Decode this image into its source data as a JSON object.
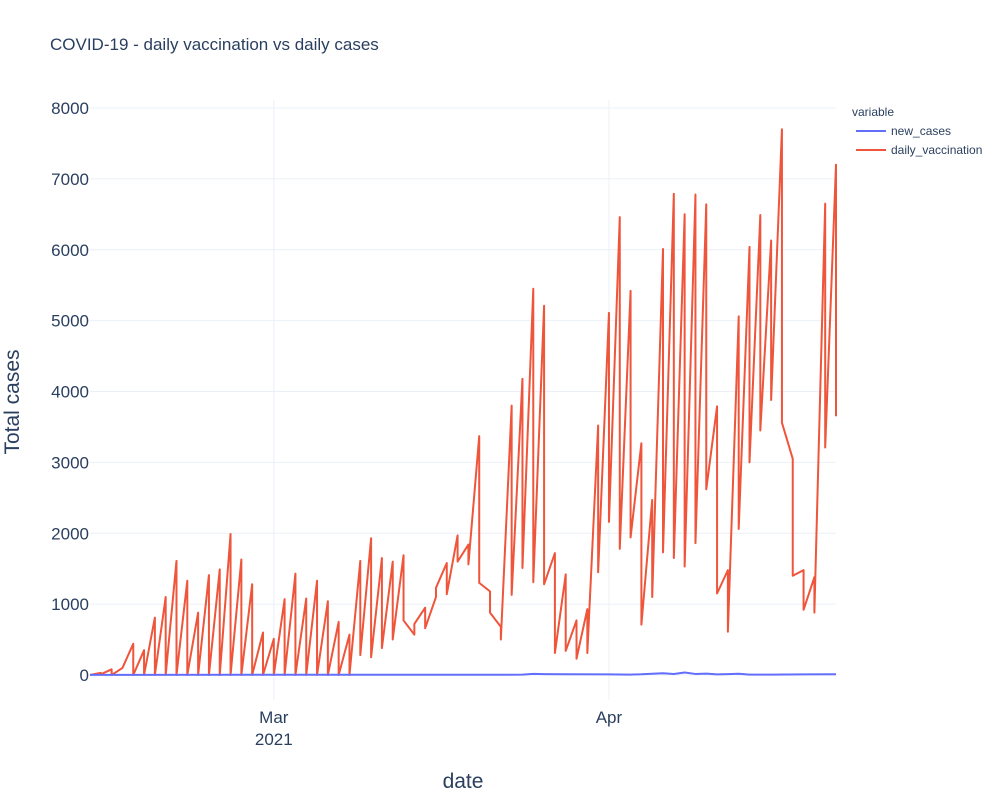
{
  "chart_data": {
    "type": "line",
    "title": "COVID-19 - daily vaccination vs daily cases",
    "xlabel": "date",
    "ylabel": "Total cases",
    "ylim": [
      -260,
      8000
    ],
    "xlim": [
      "2021-02-12",
      "2021-04-22"
    ],
    "grid": true,
    "legend": {
      "title": "variable",
      "placement": "top-right"
    },
    "x_ticks": [
      {
        "date": "2021-03-01",
        "label": "Mar",
        "sublabel": "2021"
      },
      {
        "date": "2021-04-01",
        "label": "Apr",
        "sublabel": ""
      }
    ],
    "y_ticks": [
      0,
      1000,
      2000,
      3000,
      4000,
      5000,
      6000,
      7000,
      8000
    ],
    "series": [
      {
        "name": "new_cases",
        "color": "#636efa",
        "points": [
          [
            "2021-02-12",
            2
          ],
          [
            "2021-03-01",
            3
          ],
          [
            "2021-03-20",
            3
          ],
          [
            "2021-03-24",
            5
          ],
          [
            "2021-03-25",
            16
          ],
          [
            "2021-03-26",
            12
          ],
          [
            "2021-03-28",
            10
          ],
          [
            "2021-04-01",
            8
          ],
          [
            "2021-04-03",
            6
          ],
          [
            "2021-04-04",
            10
          ],
          [
            "2021-04-05",
            18
          ],
          [
            "2021-04-06",
            25
          ],
          [
            "2021-04-07",
            14
          ],
          [
            "2021-04-08",
            35
          ],
          [
            "2021-04-09",
            15
          ],
          [
            "2021-04-10",
            20
          ],
          [
            "2021-04-11",
            8
          ],
          [
            "2021-04-12",
            12
          ],
          [
            "2021-04-13",
            18
          ],
          [
            "2021-04-14",
            6
          ],
          [
            "2021-04-16",
            5
          ],
          [
            "2021-04-19",
            8
          ],
          [
            "2021-04-22",
            10
          ]
        ]
      },
      {
        "name": "daily_vaccination",
        "color": "#ef553b",
        "points": [
          [
            "2021-02-12",
            0
          ],
          [
            "2021-02-13",
            30
          ],
          [
            "2021-02-13",
            10
          ],
          [
            "2021-02-14",
            80
          ],
          [
            "2021-02-14",
            0
          ],
          [
            "2021-02-15",
            100
          ],
          [
            "2021-02-16",
            440
          ],
          [
            "2021-02-16",
            0
          ],
          [
            "2021-02-17",
            350
          ],
          [
            "2021-02-17",
            0
          ],
          [
            "2021-02-18",
            810
          ],
          [
            "2021-02-18",
            0
          ],
          [
            "2021-02-19",
            1100
          ],
          [
            "2021-02-19",
            0
          ],
          [
            "2021-02-20",
            1610
          ],
          [
            "2021-02-20",
            0
          ],
          [
            "2021-02-21",
            1330
          ],
          [
            "2021-02-21",
            0
          ],
          [
            "2021-02-22",
            880
          ],
          [
            "2021-02-22",
            0
          ],
          [
            "2021-02-23",
            1410
          ],
          [
            "2021-02-23",
            0
          ],
          [
            "2021-02-24",
            1490
          ],
          [
            "2021-02-24",
            0
          ],
          [
            "2021-02-25",
            1990
          ],
          [
            "2021-02-25",
            0
          ],
          [
            "2021-02-26",
            1630
          ],
          [
            "2021-02-26",
            0
          ],
          [
            "2021-02-27",
            1280
          ],
          [
            "2021-02-27",
            0
          ],
          [
            "2021-02-28",
            600
          ],
          [
            "2021-02-28",
            0
          ],
          [
            "2021-03-01",
            510
          ],
          [
            "2021-03-01",
            0
          ],
          [
            "2021-03-02",
            1070
          ],
          [
            "2021-03-02",
            0
          ],
          [
            "2021-03-03",
            1430
          ],
          [
            "2021-03-03",
            0
          ],
          [
            "2021-03-04",
            1080
          ],
          [
            "2021-03-04",
            0
          ],
          [
            "2021-03-05",
            1330
          ],
          [
            "2021-03-05",
            0
          ],
          [
            "2021-03-06",
            1040
          ],
          [
            "2021-03-06",
            0
          ],
          [
            "2021-03-07",
            750
          ],
          [
            "2021-03-07",
            0
          ],
          [
            "2021-03-08",
            570
          ],
          [
            "2021-03-08",
            0
          ],
          [
            "2021-03-09",
            1610
          ],
          [
            "2021-03-09",
            280
          ],
          [
            "2021-03-10",
            1930
          ],
          [
            "2021-03-10",
            250
          ],
          [
            "2021-03-11",
            1650
          ],
          [
            "2021-03-11",
            380
          ],
          [
            "2021-03-12",
            1600
          ],
          [
            "2021-03-12",
            500
          ],
          [
            "2021-03-13",
            1690
          ],
          [
            "2021-03-13",
            770
          ],
          [
            "2021-03-14",
            570
          ],
          [
            "2021-03-14",
            720
          ],
          [
            "2021-03-15",
            950
          ],
          [
            "2021-03-15",
            660
          ],
          [
            "2021-03-16",
            1100
          ],
          [
            "2021-03-16",
            1230
          ],
          [
            "2021-03-17",
            1580
          ],
          [
            "2021-03-17",
            1140
          ],
          [
            "2021-03-18",
            1970
          ],
          [
            "2021-03-18",
            1600
          ],
          [
            "2021-03-19",
            1840
          ],
          [
            "2021-03-19",
            1560
          ],
          [
            "2021-03-20",
            3370
          ],
          [
            "2021-03-20",
            1300
          ],
          [
            "2021-03-21",
            1180
          ],
          [
            "2021-03-21",
            880
          ],
          [
            "2021-03-22",
            680
          ],
          [
            "2021-03-22",
            500
          ],
          [
            "2021-03-23",
            3800
          ],
          [
            "2021-03-23",
            1130
          ],
          [
            "2021-03-24",
            4180
          ],
          [
            "2021-03-24",
            1510
          ],
          [
            "2021-03-25",
            5450
          ],
          [
            "2021-03-25",
            1310
          ],
          [
            "2021-03-26",
            5210
          ],
          [
            "2021-03-26",
            1280
          ],
          [
            "2021-03-27",
            1720
          ],
          [
            "2021-03-27",
            310
          ],
          [
            "2021-03-28",
            1420
          ],
          [
            "2021-03-28",
            340
          ],
          [
            "2021-03-29",
            770
          ],
          [
            "2021-03-29",
            230
          ],
          [
            "2021-03-30",
            930
          ],
          [
            "2021-03-30",
            310
          ],
          [
            "2021-03-31",
            3520
          ],
          [
            "2021-03-31",
            1450
          ],
          [
            "2021-04-01",
            5110
          ],
          [
            "2021-04-01",
            2160
          ],
          [
            "2021-04-02",
            6460
          ],
          [
            "2021-04-02",
            1780
          ],
          [
            "2021-04-03",
            5420
          ],
          [
            "2021-04-03",
            1940
          ],
          [
            "2021-04-04",
            3270
          ],
          [
            "2021-04-04",
            710
          ],
          [
            "2021-04-05",
            2470
          ],
          [
            "2021-04-05",
            1100
          ],
          [
            "2021-04-06",
            6010
          ],
          [
            "2021-04-06",
            1730
          ],
          [
            "2021-04-07",
            6790
          ],
          [
            "2021-04-07",
            1650
          ],
          [
            "2021-04-08",
            6500
          ],
          [
            "2021-04-08",
            1530
          ],
          [
            "2021-04-09",
            6780
          ],
          [
            "2021-04-09",
            1860
          ],
          [
            "2021-04-10",
            6640
          ],
          [
            "2021-04-10",
            2620
          ],
          [
            "2021-04-11",
            3790
          ],
          [
            "2021-04-11",
            1150
          ],
          [
            "2021-04-12",
            1480
          ],
          [
            "2021-04-12",
            610
          ],
          [
            "2021-04-13",
            5060
          ],
          [
            "2021-04-13",
            2060
          ],
          [
            "2021-04-14",
            6040
          ],
          [
            "2021-04-14",
            3000
          ],
          [
            "2021-04-15",
            6490
          ],
          [
            "2021-04-15",
            3450
          ],
          [
            "2021-04-16",
            6130
          ],
          [
            "2021-04-16",
            3880
          ],
          [
            "2021-04-17",
            7700
          ],
          [
            "2021-04-17",
            3560
          ],
          [
            "2021-04-18",
            3050
          ],
          [
            "2021-04-18",
            1400
          ],
          [
            "2021-04-19",
            1480
          ],
          [
            "2021-04-19",
            920
          ],
          [
            "2021-04-20",
            1380
          ],
          [
            "2021-04-20",
            880
          ],
          [
            "2021-04-21",
            6650
          ],
          [
            "2021-04-21",
            3210
          ],
          [
            "2021-04-22",
            7200
          ],
          [
            "2021-04-22",
            3650
          ]
        ]
      }
    ]
  }
}
